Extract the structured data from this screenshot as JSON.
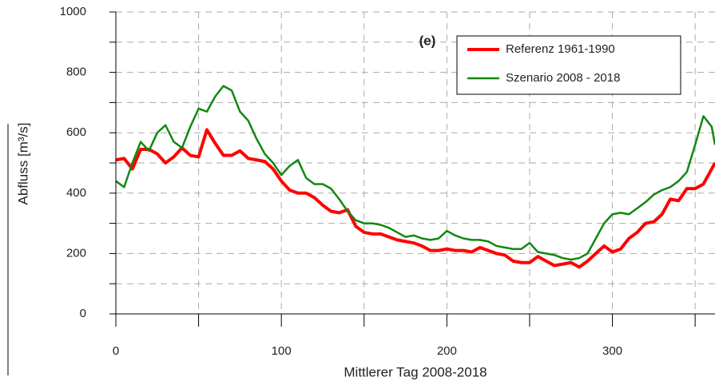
{
  "chart_data": {
    "type": "line",
    "annotation": "(e)",
    "x_label": "Mittlerer Tag 2008-2018",
    "y_label": "Abfluss [m³/s]",
    "xlim": [
      0,
      362
    ],
    "ylim": [
      0,
      1000
    ],
    "xticks": [
      0,
      100,
      200,
      300
    ],
    "minor_xticks": [
      50,
      150,
      250,
      350
    ],
    "yticks": [
      0,
      200,
      400,
      600,
      800,
      1000
    ],
    "minor_yticks": [
      100,
      300,
      500,
      700,
      900
    ],
    "grid": true,
    "legend": "upper right",
    "x": [
      0,
      5,
      10,
      15,
      20,
      25,
      30,
      35,
      40,
      45,
      50,
      55,
      60,
      65,
      70,
      75,
      80,
      85,
      90,
      95,
      100,
      105,
      110,
      115,
      120,
      125,
      130,
      135,
      140,
      145,
      150,
      155,
      160,
      165,
      170,
      175,
      180,
      185,
      190,
      195,
      200,
      205,
      210,
      215,
      220,
      225,
      230,
      235,
      240,
      245,
      250,
      255,
      260,
      265,
      270,
      275,
      280,
      285,
      290,
      295,
      300,
      305,
      310,
      315,
      320,
      325,
      330,
      335,
      340,
      345,
      350,
      355,
      360,
      362
    ],
    "series": [
      {
        "name": "Referenz 1961-1990",
        "color": "#ff0000",
        "width": 4,
        "values": [
          510,
          515,
          480,
          545,
          545,
          530,
          500,
          520,
          550,
          525,
          520,
          610,
          565,
          525,
          525,
          540,
          515,
          510,
          505,
          480,
          440,
          410,
          400,
          400,
          385,
          360,
          340,
          335,
          345,
          290,
          270,
          265,
          265,
          255,
          245,
          240,
          235,
          225,
          210,
          210,
          215,
          210,
          210,
          205,
          220,
          210,
          200,
          195,
          175,
          170,
          170,
          190,
          175,
          160,
          165,
          170,
          155,
          175,
          200,
          225,
          205,
          215,
          250,
          270,
          300,
          305,
          330,
          380,
          375,
          415,
          415,
          430,
          480,
          500
        ]
      },
      {
        "name": "Szenario 2008 - 2018",
        "color": "#118811",
        "width": 2.5,
        "values": [
          440,
          420,
          500,
          570,
          540,
          600,
          625,
          570,
          550,
          620,
          680,
          670,
          720,
          755,
          740,
          670,
          640,
          580,
          530,
          500,
          460,
          490,
          510,
          450,
          430,
          430,
          415,
          380,
          340,
          310,
          300,
          300,
          295,
          285,
          270,
          255,
          260,
          250,
          245,
          250,
          275,
          260,
          250,
          245,
          245,
          240,
          225,
          220,
          215,
          215,
          235,
          205,
          200,
          195,
          185,
          180,
          185,
          200,
          250,
          300,
          330,
          335,
          330,
          350,
          370,
          395,
          410,
          420,
          440,
          470,
          560,
          655,
          620,
          560
        ]
      }
    ]
  }
}
